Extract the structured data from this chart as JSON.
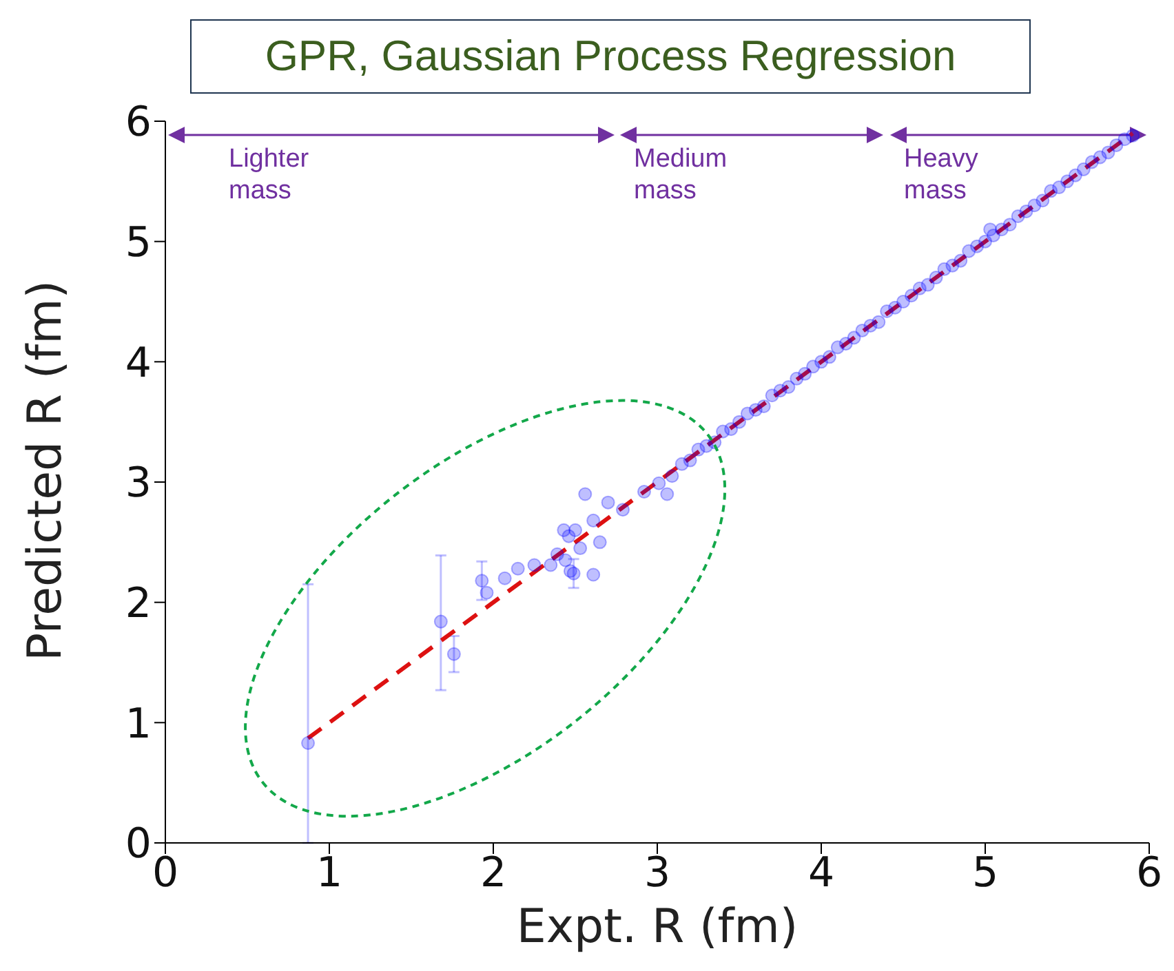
{
  "chart_data": {
    "type": "scatter",
    "title": "GPR, Gaussian Process Regression",
    "xlabel": "Expt. R (fm)",
    "ylabel": "Predicted R (fm)",
    "xlim": [
      0,
      6
    ],
    "ylim": [
      0,
      6
    ],
    "xticks": [
      0,
      1,
      2,
      3,
      4,
      5,
      6
    ],
    "yticks": [
      0,
      1,
      2,
      3,
      4,
      5,
      6
    ],
    "marker": "circle",
    "annotations": [
      "Lighter mass",
      "Medium mass",
      "Heavy mass"
    ],
    "series": [
      {
        "color": "#0000ff",
        "x": [
          0.87,
          1.68,
          1.76,
          1.93,
          1.96,
          2.07,
          2.15,
          2.25,
          2.35,
          2.39,
          2.44,
          2.47,
          2.49,
          2.46,
          2.5,
          2.43,
          2.53,
          2.61,
          2.65,
          2.61,
          2.56,
          2.7,
          2.79,
          2.92,
          3.01,
          3.06,
          3.09,
          3.15,
          3.2,
          3.25,
          3.3,
          3.35,
          3.4,
          3.45,
          3.5,
          3.55,
          3.6,
          3.65,
          3.7,
          3.75,
          3.8,
          3.85,
          3.9,
          3.95,
          4.0,
          4.05,
          4.1,
          4.15,
          4.2,
          4.25,
          4.3,
          4.35,
          4.4,
          4.45,
          4.5,
          4.55,
          4.6,
          4.65,
          4.7,
          4.75,
          4.8,
          4.85,
          4.9,
          4.95,
          5.0,
          5.03,
          5.05,
          5.1,
          5.15,
          5.2,
          5.25,
          5.3,
          5.35,
          5.4,
          5.45,
          5.5,
          5.55,
          5.6,
          5.65,
          5.7,
          5.75,
          5.8,
          5.85,
          5.9
        ],
        "values": [
          0.83,
          1.84,
          1.57,
          2.18,
          2.08,
          2.2,
          2.28,
          2.31,
          2.31,
          2.4,
          2.35,
          2.26,
          2.24,
          2.55,
          2.6,
          2.6,
          2.45,
          2.23,
          2.5,
          2.68,
          2.9,
          2.83,
          2.77,
          2.92,
          2.99,
          2.9,
          3.05,
          3.15,
          3.18,
          3.27,
          3.3,
          3.33,
          3.42,
          3.44,
          3.5,
          3.57,
          3.6,
          3.63,
          3.72,
          3.76,
          3.79,
          3.86,
          3.9,
          3.96,
          4.0,
          4.04,
          4.12,
          4.15,
          4.2,
          4.26,
          4.3,
          4.33,
          4.42,
          4.45,
          4.5,
          4.55,
          4.61,
          4.64,
          4.7,
          4.77,
          4.8,
          4.84,
          4.92,
          4.96,
          5.0,
          5.1,
          5.05,
          5.1,
          5.14,
          5.21,
          5.25,
          5.3,
          5.34,
          5.42,
          5.45,
          5.5,
          5.55,
          5.6,
          5.66,
          5.7,
          5.74,
          5.8,
          5.85,
          5.88
        ],
        "errors": [
          [
            0,
            2.15
          ],
          [
            1.27,
            2.39
          ],
          [
            1.42,
            1.72
          ],
          [
            2.02,
            2.34
          ],
          null,
          null,
          null,
          null,
          null,
          null,
          null,
          null,
          [
            2.12,
            2.36
          ],
          null,
          null,
          null,
          null,
          null,
          null,
          null,
          null,
          null,
          null,
          null,
          null,
          null,
          null,
          null,
          null,
          null,
          null,
          null,
          null,
          null,
          null,
          null,
          null,
          null,
          null,
          null,
          null,
          null,
          null,
          null,
          null,
          null,
          null,
          null,
          null,
          null,
          null,
          null,
          null,
          null,
          null,
          null,
          null,
          null,
          null,
          null,
          null,
          null,
          null,
          null,
          null,
          null,
          null,
          null,
          null,
          null,
          null,
          null,
          null,
          null,
          null,
          null,
          null,
          null,
          null,
          null,
          null,
          null,
          null,
          null
        ]
      },
      {
        "type": "line",
        "color": "#dd1111",
        "line_style": "dashed",
        "marker": "none",
        "x": [
          0.87,
          5.9
        ],
        "values": [
          0.87,
          5.9
        ]
      }
    ]
  }
}
